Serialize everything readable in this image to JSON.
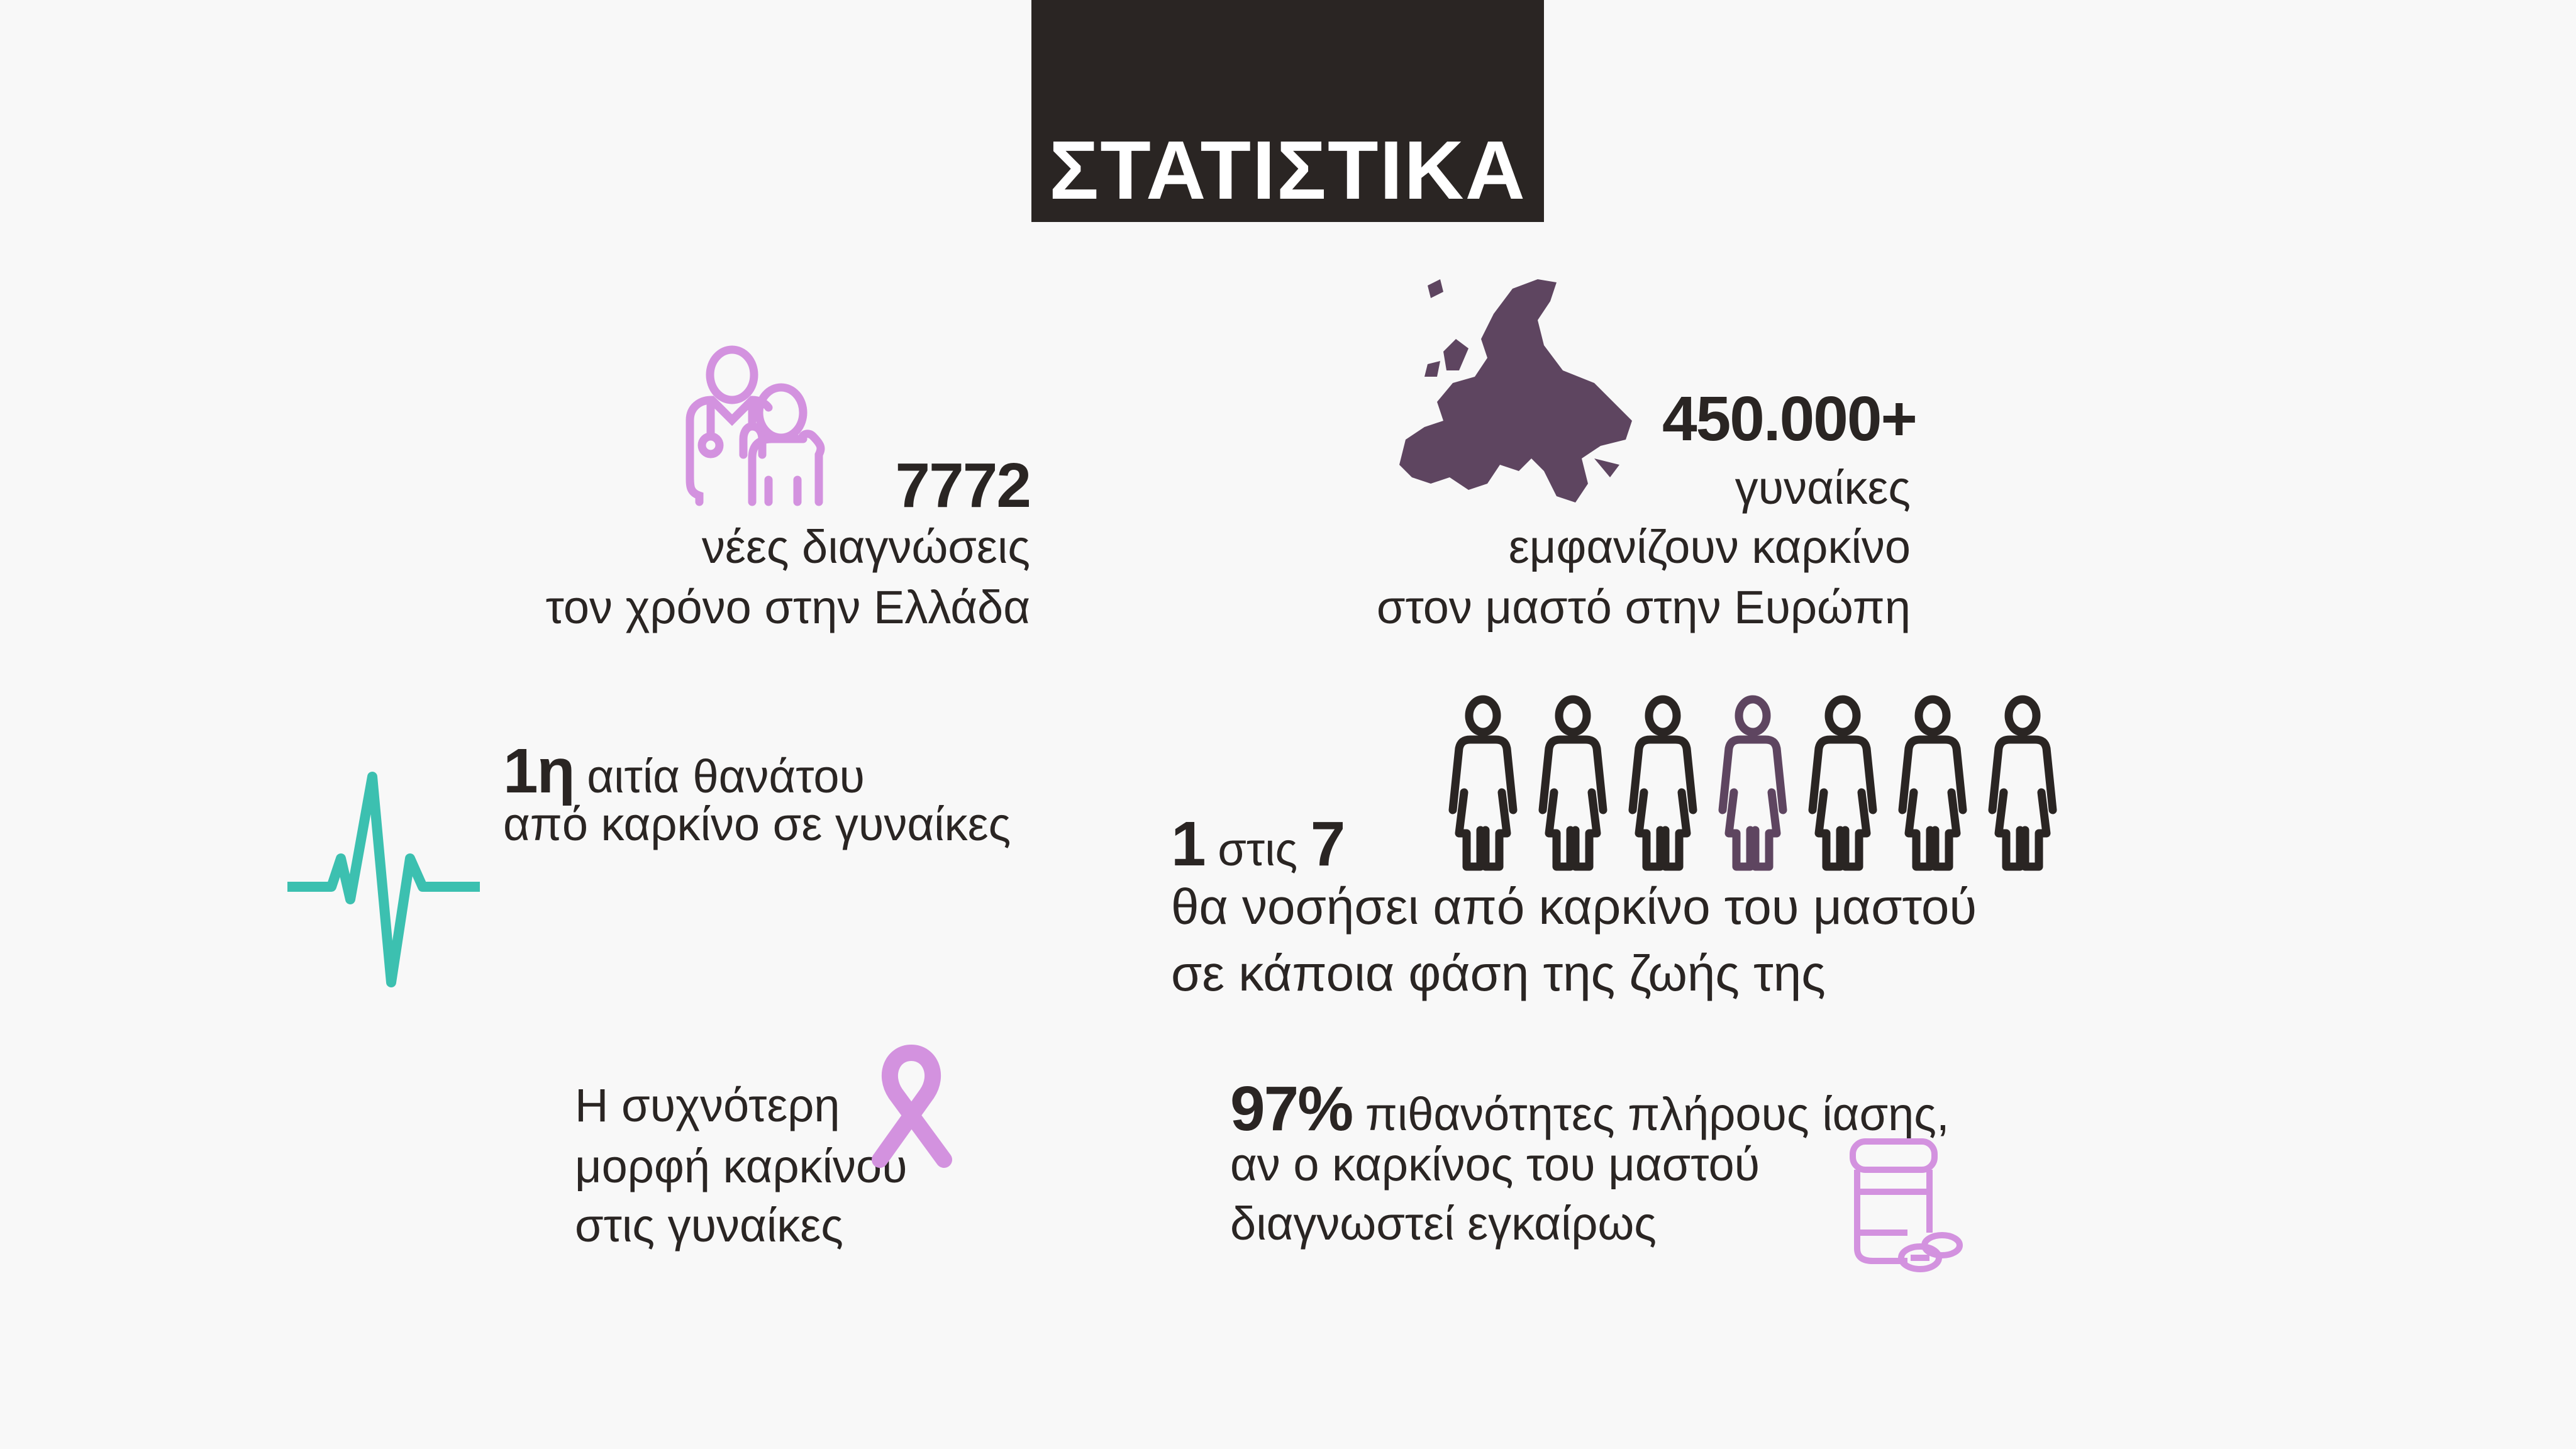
{
  "title": "ΣΤΑΤΙΣΤΙΚΑ",
  "colors": {
    "background": "#f8f8f8",
    "dark": "#2a2523",
    "lilac": "#d392df",
    "plum": "#5e4560",
    "teal": "#3cc0b0"
  },
  "stats": {
    "diagnoses": {
      "icon": "doctor-patient-icon",
      "value": "7772",
      "line1": "νέες διαγνώσεις",
      "line2": "τον χρόνο στην Ελλάδα"
    },
    "europe": {
      "icon": "europe-map-icon",
      "value": "450.000+",
      "line1": "γυναίκες",
      "line2": "εμφανίζουν καρκίνο",
      "line3": "στον μαστό στην Ευρώπη"
    },
    "death_cause": {
      "icon": "heartbeat-icon",
      "value": "1η",
      "line1": "αιτία θανάτου",
      "line2": "από καρκίνο σε γυναίκες"
    },
    "ratio": {
      "icon": "woman-figure-icon",
      "value_a": "1",
      "middle": "στις",
      "value_b": "7",
      "highlighted_index": 4,
      "total": 7,
      "line1": "θα νοσήσει από καρκίνο του μαστού",
      "line2": "σε κάποια φάση της ζωής της"
    },
    "common": {
      "icon": "pink-ribbon-icon",
      "line1": "Η συχνότερη",
      "line2": "μορφή καρκίνου",
      "line3": "στις γυναίκες"
    },
    "cure": {
      "icon": "pill-bottle-icon",
      "value": "97%",
      "line1": "πιθανότητες πλήρους ίασης,",
      "line2": "αν ο καρκίνος του μαστού",
      "line3": "διαγνωστεί εγκαίρως"
    }
  }
}
